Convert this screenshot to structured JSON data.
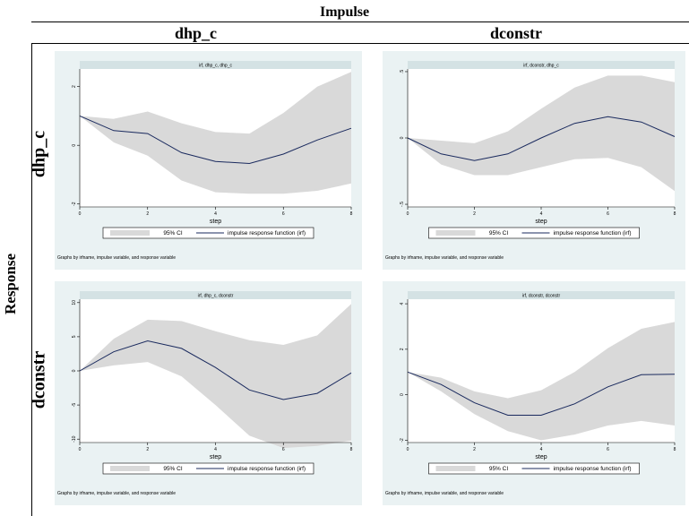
{
  "header": {
    "impulse_label": "Impulse",
    "response_label": "Response",
    "col_labels": [
      "dhp_c",
      "dconstr"
    ],
    "row_labels": [
      "dhp_c",
      "dconstr"
    ]
  },
  "legend": {
    "ci_label": "95% CI",
    "irf_label": "impulse response function (irf)"
  },
  "footnote": "Graphs by irfname, impulse variable, and response variable",
  "colors": {
    "panel_bg": "#eaf2f3",
    "plot_bg": "#ffffff",
    "ci_fill": "#d9d9d9",
    "line": "#1a2a5e"
  },
  "chart_data": [
    {
      "type": "line",
      "title": "irf, dhp_c, dhp_c",
      "xlabel": "step",
      "x": [
        0,
        1,
        2,
        3,
        4,
        5,
        6,
        7,
        8
      ],
      "xticks": [
        0,
        2,
        4,
        6,
        8
      ],
      "ylim": [
        -2.1,
        2.6
      ],
      "yticks": [
        -2,
        0,
        2
      ],
      "series": [
        {
          "name": "impulse response function (irf)",
          "values": [
            1.0,
            0.5,
            0.4,
            -0.25,
            -0.55,
            -0.62,
            -0.3,
            0.18,
            0.58
          ]
        },
        {
          "name": "95% CI",
          "lower": [
            1.0,
            0.1,
            -0.35,
            -1.2,
            -1.6,
            -1.65,
            -1.65,
            -1.55,
            -1.3
          ],
          "upper": [
            1.0,
            0.9,
            1.15,
            0.75,
            0.45,
            0.4,
            1.1,
            2.0,
            2.5
          ]
        }
      ]
    },
    {
      "type": "line",
      "title": "irf, dconstr, dhp_c",
      "xlabel": "step",
      "x": [
        0,
        1,
        2,
        3,
        4,
        5,
        6,
        7,
        8
      ],
      "xticks": [
        0,
        2,
        4,
        6,
        8
      ],
      "ylim": [
        -0.52,
        0.52
      ],
      "yticks": [
        -0.5,
        0,
        0.5
      ],
      "ytick_labels": [
        "-.5",
        "0",
        ".5"
      ],
      "series": [
        {
          "name": "impulse response function (irf)",
          "values": [
            0.0,
            -0.12,
            -0.17,
            -0.12,
            0.0,
            0.11,
            0.16,
            0.12,
            0.01
          ]
        },
        {
          "name": "95% CI",
          "lower": [
            0.0,
            -0.2,
            -0.28,
            -0.28,
            -0.22,
            -0.16,
            -0.15,
            -0.22,
            -0.4
          ],
          "upper": [
            0.0,
            -0.02,
            -0.04,
            0.05,
            0.22,
            0.38,
            0.47,
            0.47,
            0.42
          ]
        }
      ]
    },
    {
      "type": "line",
      "title": "irf, dhp_c, dconstr",
      "xlabel": "step",
      "x": [
        0,
        1,
        2,
        3,
        4,
        5,
        6,
        7,
        8
      ],
      "xticks": [
        0,
        2,
        4,
        6,
        8
      ],
      "ylim": [
        -10.5,
        10.5
      ],
      "yticks": [
        -10,
        -5,
        0,
        5,
        10
      ],
      "series": [
        {
          "name": "impulse response function (irf)",
          "values": [
            0.0,
            2.8,
            4.4,
            3.3,
            0.5,
            -2.8,
            -4.2,
            -3.3,
            -0.3
          ]
        },
        {
          "name": "95% CI",
          "lower": [
            0.0,
            0.8,
            1.3,
            -0.8,
            -5.0,
            -9.5,
            -11.3,
            -11.0,
            -10.2
          ],
          "upper": [
            0.0,
            4.7,
            7.5,
            7.3,
            5.8,
            4.5,
            3.8,
            5.2,
            9.8
          ]
        }
      ]
    },
    {
      "type": "line",
      "title": "irf, dconstr, dconstr",
      "xlabel": "step",
      "x": [
        0,
        1,
        2,
        3,
        4,
        5,
        6,
        7,
        8
      ],
      "xticks": [
        0,
        2,
        4,
        6,
        8
      ],
      "ylim": [
        -2.1,
        4.2
      ],
      "yticks": [
        -2,
        0,
        2,
        4
      ],
      "series": [
        {
          "name": "impulse response function (irf)",
          "values": [
            1.0,
            0.45,
            -0.35,
            -0.9,
            -0.9,
            -0.4,
            0.35,
            0.88,
            0.9
          ]
        },
        {
          "name": "95% CI",
          "lower": [
            1.0,
            0.15,
            -0.85,
            -1.6,
            -2.0,
            -1.75,
            -1.35,
            -1.15,
            -1.35
          ],
          "upper": [
            1.0,
            0.75,
            0.15,
            -0.15,
            0.2,
            1.0,
            2.05,
            2.9,
            3.2
          ]
        }
      ]
    }
  ]
}
